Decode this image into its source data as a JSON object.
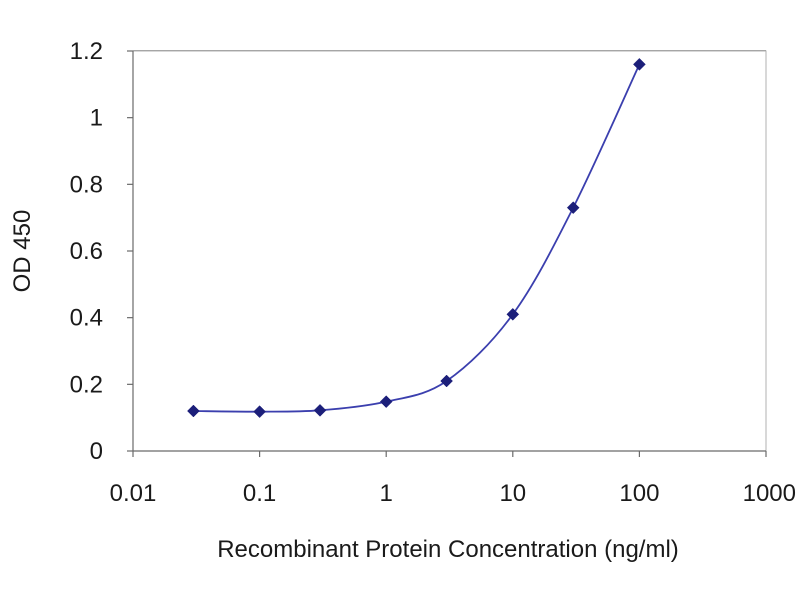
{
  "chart_data": {
    "type": "line",
    "xlabel": "Recombinant Protein Concentration (ng/ml)",
    "ylabel": "OD 450",
    "x_scale": "log",
    "xlim": [
      0.01,
      1000
    ],
    "ylim": [
      0,
      1.2
    ],
    "x_ticks": [
      "0.01",
      "0.1",
      "1",
      "10",
      "100",
      "1000"
    ],
    "y_ticks": [
      "0",
      "0.2",
      "0.4",
      "0.6",
      "0.8",
      "1",
      "1.2"
    ],
    "grid": "horizontal",
    "legend": "none",
    "series": [
      {
        "x": [
          0.03,
          0.1,
          0.3,
          1,
          3,
          10,
          30,
          100
        ],
        "y": [
          0.12,
          0.118,
          0.122,
          0.148,
          0.21,
          0.41,
          0.73,
          1.16
        ]
      }
    ],
    "colors": {
      "line": "#3b3fae",
      "marker": "#1c1f7a",
      "grid": "#3a3a3a",
      "axis": "#6a6a6a",
      "background": "#ffffff"
    }
  }
}
